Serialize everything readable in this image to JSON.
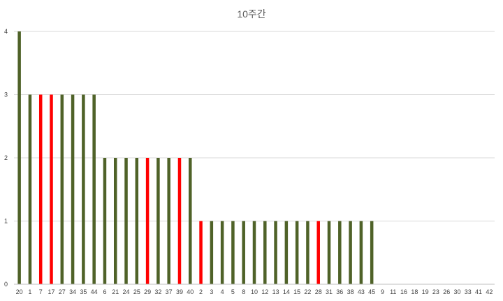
{
  "chart_data": {
    "type": "bar",
    "title": "10주간",
    "xlabel": "",
    "ylabel": "",
    "ylim": [
      0,
      4
    ],
    "yticks": [
      0,
      1,
      2,
      3,
      4
    ],
    "grid": true,
    "legend": "none",
    "colors": {
      "default": "#4f6228",
      "highlight": "#ff0000"
    },
    "categories": [
      "20",
      "1",
      "7",
      "17",
      "27",
      "34",
      "35",
      "44",
      "6",
      "21",
      "24",
      "25",
      "29",
      "32",
      "37",
      "39",
      "40",
      "2",
      "3",
      "4",
      "5",
      "8",
      "10",
      "12",
      "13",
      "14",
      "15",
      "22",
      "28",
      "31",
      "36",
      "38",
      "43",
      "45",
      "9",
      "11",
      "16",
      "18",
      "19",
      "23",
      "26",
      "30",
      "33",
      "41",
      "42"
    ],
    "values": [
      4,
      3,
      3,
      3,
      3,
      3,
      3,
      3,
      2,
      2,
      2,
      2,
      2,
      2,
      2,
      2,
      2,
      1,
      1,
      1,
      1,
      1,
      1,
      1,
      1,
      1,
      1,
      1,
      1,
      1,
      1,
      1,
      1,
      1,
      0,
      0,
      0,
      0,
      0,
      0,
      0,
      0,
      0,
      0,
      0
    ],
    "highlighted": [
      "7",
      "17",
      "29",
      "39",
      "2",
      "28"
    ]
  }
}
